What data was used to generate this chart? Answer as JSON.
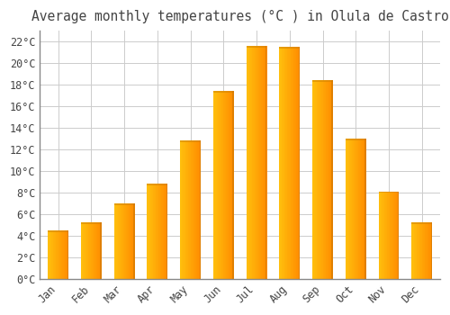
{
  "title": "Average monthly temperatures (°C ) in Olula de Castro",
  "months": [
    "Jan",
    "Feb",
    "Mar",
    "Apr",
    "May",
    "Jun",
    "Jul",
    "Aug",
    "Sep",
    "Oct",
    "Nov",
    "Dec"
  ],
  "temperatures": [
    4.5,
    5.2,
    7.0,
    8.8,
    12.8,
    17.4,
    21.6,
    21.5,
    18.4,
    13.0,
    8.1,
    5.2
  ],
  "bar_color_main": "#FFA500",
  "bar_color_light": "#FFD050",
  "bar_color_dark": "#E08000",
  "background_color": "#FFFFFF",
  "grid_color": "#CCCCCC",
  "text_color": "#444444",
  "ylim": [
    0,
    23
  ],
  "yticks": [
    0,
    2,
    4,
    6,
    8,
    10,
    12,
    14,
    16,
    18,
    20,
    22
  ],
  "title_fontsize": 10.5,
  "tick_fontsize": 8.5,
  "font_family": "monospace"
}
